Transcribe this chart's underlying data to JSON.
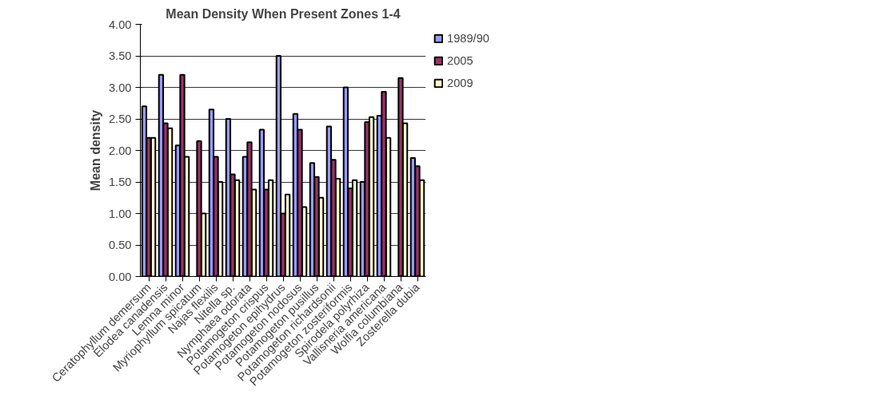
{
  "chart_data": {
    "type": "bar",
    "title": "Mean Density When Present Zones 1-4",
    "ylabel": "Mean density",
    "categories": [
      "Ceratophyllum demersum",
      "Elodea canadensis",
      "Lemna minor",
      "Myriophyllum spicatum",
      "Najas flexilis",
      "Nitella sp.",
      "Nymphaea odorata",
      "Potamogeton crispus",
      "Potamogeton epihydrus",
      "Potamogeton nodosus",
      "Potamogeton pusillus",
      "Potamogeton richardsonii",
      "Potamogeton zosteriformis",
      "Spirodela polyrhiza",
      "Vallisneria americana",
      "Wolfia columbiana",
      "Zosterella dubia"
    ],
    "series": [
      {
        "name": "1989/90",
        "color": "#9999ff",
        "values": [
          2.7,
          3.2,
          2.08,
          null,
          2.65,
          2.5,
          1.9,
          2.33,
          3.5,
          2.58,
          1.8,
          2.38,
          3.0,
          1.5,
          2.55,
          null,
          1.88
        ]
      },
      {
        "name": "2005",
        "color": "#993366",
        "values": [
          2.2,
          2.43,
          3.2,
          2.15,
          1.9,
          1.62,
          2.13,
          1.38,
          1.0,
          2.33,
          1.58,
          1.85,
          1.4,
          2.45,
          2.93,
          3.15,
          1.75
        ]
      },
      {
        "name": "2009",
        "color": "#ffffcc",
        "values": [
          2.2,
          2.35,
          1.9,
          1.0,
          1.5,
          1.53,
          1.38,
          1.53,
          1.3,
          1.1,
          1.25,
          1.55,
          1.53,
          2.53,
          2.2,
          2.43,
          1.53
        ]
      }
    ],
    "ylim": [
      0,
      4
    ],
    "yticks": [
      {
        "value": 0,
        "label": "0.00"
      },
      {
        "value": 0.5,
        "label": "0.50"
      },
      {
        "value": 1,
        "label": "1.00"
      },
      {
        "value": 1.5,
        "label": "1.50"
      },
      {
        "value": 2,
        "label": "2.00"
      },
      {
        "value": 2.5,
        "label": "2.50"
      },
      {
        "value": 3,
        "label": "3.00"
      },
      {
        "value": 3.5,
        "label": "3.50"
      },
      {
        "value": 4,
        "label": "4.00"
      }
    ],
    "grid": "y",
    "legend": "right"
  }
}
